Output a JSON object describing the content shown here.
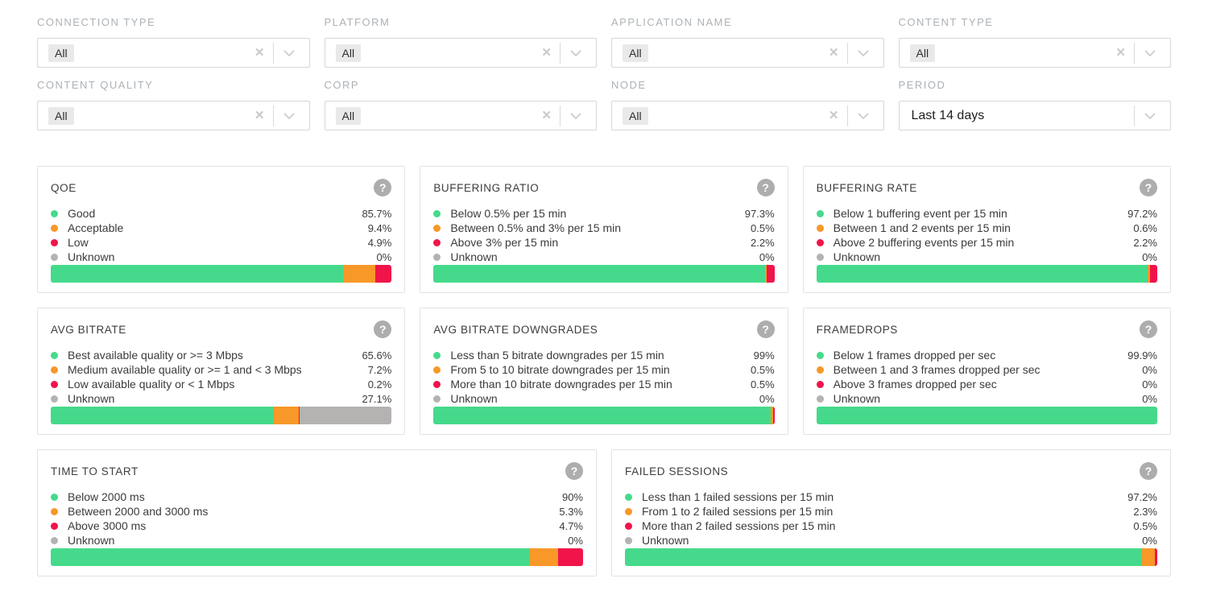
{
  "colors": {
    "good": "#45da8b",
    "acceptable": "#f79828",
    "low": "#f0144a",
    "unknown": "#b5b2b2"
  },
  "icons": {
    "clear": "✕",
    "help": "?"
  },
  "filters": [
    {
      "label": "CONNECTION TYPE",
      "value": "All"
    },
    {
      "label": "PLATFORM",
      "value": "All"
    },
    {
      "label": "APPLICATION NAME",
      "value": "All"
    },
    {
      "label": "CONTENT TYPE",
      "value": "All"
    },
    {
      "label": "CONTENT QUALITY",
      "value": "All"
    },
    {
      "label": "CORP",
      "value": "All"
    },
    {
      "label": "NODE",
      "value": "All"
    },
    {
      "label": "PERIOD",
      "value": "Last 14 days"
    }
  ],
  "cards": [
    {
      "title": "QOE",
      "items": [
        {
          "label": "Good",
          "value": "85.7%",
          "color": "good"
        },
        {
          "label": "Acceptable",
          "value": "9.4%",
          "color": "acceptable"
        },
        {
          "label": "Low",
          "value": "4.9%",
          "color": "low"
        },
        {
          "label": "Unknown",
          "value": "0%",
          "color": "unknown"
        }
      ]
    },
    {
      "title": "BUFFERING RATIO",
      "items": [
        {
          "label": "Below 0.5% per 15 min",
          "value": "97.3%",
          "color": "good"
        },
        {
          "label": "Between 0.5% and 3% per 15 min",
          "value": "0.5%",
          "color": "acceptable"
        },
        {
          "label": "Above 3% per 15 min",
          "value": "2.2%",
          "color": "low"
        },
        {
          "label": "Unknown",
          "value": "0%",
          "color": "unknown"
        }
      ]
    },
    {
      "title": "BUFFERING RATE",
      "items": [
        {
          "label": "Below 1 buffering event per 15 min",
          "value": "97.2%",
          "color": "good"
        },
        {
          "label": "Between 1 and 2 events per 15 min",
          "value": "0.6%",
          "color": "acceptable"
        },
        {
          "label": "Above 2 buffering events per 15 min",
          "value": "2.2%",
          "color": "low"
        },
        {
          "label": "Unknown",
          "value": "0%",
          "color": "unknown"
        }
      ]
    },
    {
      "title": "AVG BITRATE",
      "items": [
        {
          "label": "Best available quality or >= 3 Mbps",
          "value": "65.6%",
          "color": "good"
        },
        {
          "label": "Medium available quality or >= 1 and < 3 Mbps",
          "value": "7.2%",
          "color": "acceptable"
        },
        {
          "label": "Low available quality or < 1 Mbps",
          "value": "0.2%",
          "color": "low"
        },
        {
          "label": "Unknown",
          "value": "27.1%",
          "color": "unknown"
        }
      ]
    },
    {
      "title": "AVG BITRATE DOWNGRADES",
      "items": [
        {
          "label": "Less than 5 bitrate downgrades per 15 min",
          "value": "99%",
          "color": "good"
        },
        {
          "label": "From 5 to 10 bitrate downgrades per 15 min",
          "value": "0.5%",
          "color": "acceptable"
        },
        {
          "label": "More than 10 bitrate downgrades per 15 min",
          "value": "0.5%",
          "color": "low"
        },
        {
          "label": "Unknown",
          "value": "0%",
          "color": "unknown"
        }
      ]
    },
    {
      "title": "FRAMEDROPS",
      "items": [
        {
          "label": "Below 1 frames dropped per sec",
          "value": "99.9%",
          "color": "good"
        },
        {
          "label": "Between 1 and 3 frames dropped per sec",
          "value": "0%",
          "color": "acceptable"
        },
        {
          "label": "Above 3 frames dropped per sec",
          "value": "0%",
          "color": "low"
        },
        {
          "label": "Unknown",
          "value": "0%",
          "color": "unknown"
        }
      ]
    },
    {
      "title": "TIME TO START",
      "items": [
        {
          "label": "Below 2000 ms",
          "value": "90%",
          "color": "good"
        },
        {
          "label": "Between 2000 and 3000 ms",
          "value": "5.3%",
          "color": "acceptable"
        },
        {
          "label": "Above 3000 ms",
          "value": "4.7%",
          "color": "low"
        },
        {
          "label": "Unknown",
          "value": "0%",
          "color": "unknown"
        }
      ]
    },
    {
      "title": "FAILED SESSIONS",
      "items": [
        {
          "label": "Less than 1 failed sessions per 15 min",
          "value": "97.2%",
          "color": "good"
        },
        {
          "label": "From 1 to 2 failed sessions per 15 min",
          "value": "2.3%",
          "color": "acceptable"
        },
        {
          "label": "More than 2 failed sessions per 15 min",
          "value": "0.5%",
          "color": "low"
        },
        {
          "label": "Unknown",
          "value": "0%",
          "color": "unknown"
        }
      ]
    }
  ]
}
